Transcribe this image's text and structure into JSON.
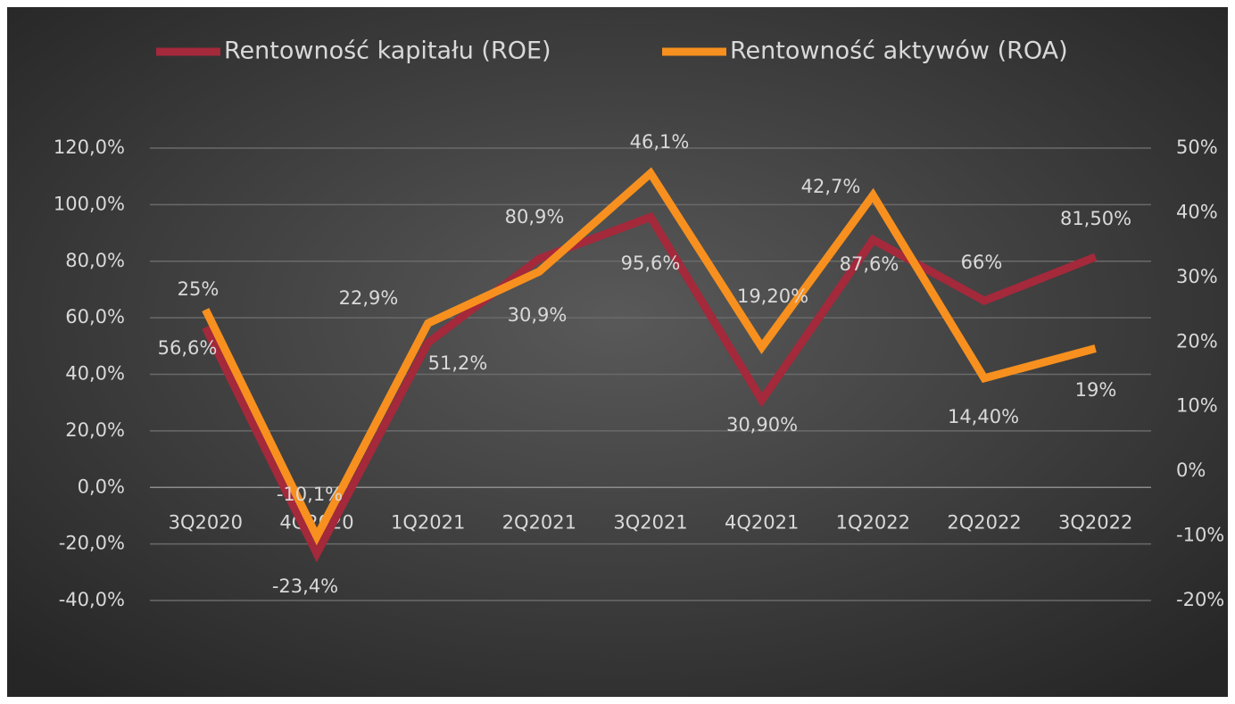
{
  "chart_data": {
    "type": "line",
    "categories": [
      "3Q2020",
      "4Q2020",
      "1Q2021",
      "2Q2021",
      "3Q2021",
      "4Q2021",
      "1Q2022",
      "2Q2022",
      "3Q2022"
    ],
    "series": [
      {
        "name": "Rentowność kapitału (ROE)",
        "color": "#a3293b",
        "values": [
          56.6,
          -23.4,
          51.2,
          80.9,
          95.6,
          30.9,
          87.6,
          66,
          81.5
        ],
        "value_labels": [
          "56,6%",
          "-23,4%",
          "51,2%",
          "80,9%",
          "95,6%",
          "30,90%",
          "87,6%",
          "66%",
          "81,50%"
        ]
      },
      {
        "name": "Rentowność aktywów (ROA)",
        "color": "#f7901e",
        "axis": "y2",
        "values": [
          25,
          -10.1,
          22.9,
          30.9,
          46.1,
          19.2,
          42.7,
          14.4,
          19
        ],
        "value_labels": [
          "25%",
          "-10,1%",
          "22,9%",
          "30,9%",
          "46,1%",
          "19,20%",
          "42,7%",
          "14,40%",
          "19%"
        ]
      }
    ],
    "ylim": [
      -40,
      120
    ],
    "yticks": [
      {
        "value": -40,
        "label": "-40,0%"
      },
      {
        "value": -20,
        "label": "-20,0%"
      },
      {
        "value": 0,
        "label": "0,0%"
      },
      {
        "value": 20,
        "label": "20,0%"
      },
      {
        "value": 40,
        "label": "40,0%"
      },
      {
        "value": 60,
        "label": "60,0%"
      },
      {
        "value": 80,
        "label": "80,0%"
      },
      {
        "value": 100,
        "label": "100,0%"
      },
      {
        "value": 120,
        "label": "120,0%"
      }
    ],
    "y2lim": [
      -20,
      50
    ],
    "y2ticks": [
      {
        "value": -20,
        "label": "-20%"
      },
      {
        "value": -10,
        "label": "-10%"
      },
      {
        "value": 0,
        "label": "0%"
      },
      {
        "value": 10,
        "label": "10%"
      },
      {
        "value": 20,
        "label": "20%"
      },
      {
        "value": 30,
        "label": "30%"
      },
      {
        "value": 40,
        "label": "40%"
      },
      {
        "value": 50,
        "label": "50%"
      }
    ],
    "grid": true,
    "legend": "top"
  }
}
